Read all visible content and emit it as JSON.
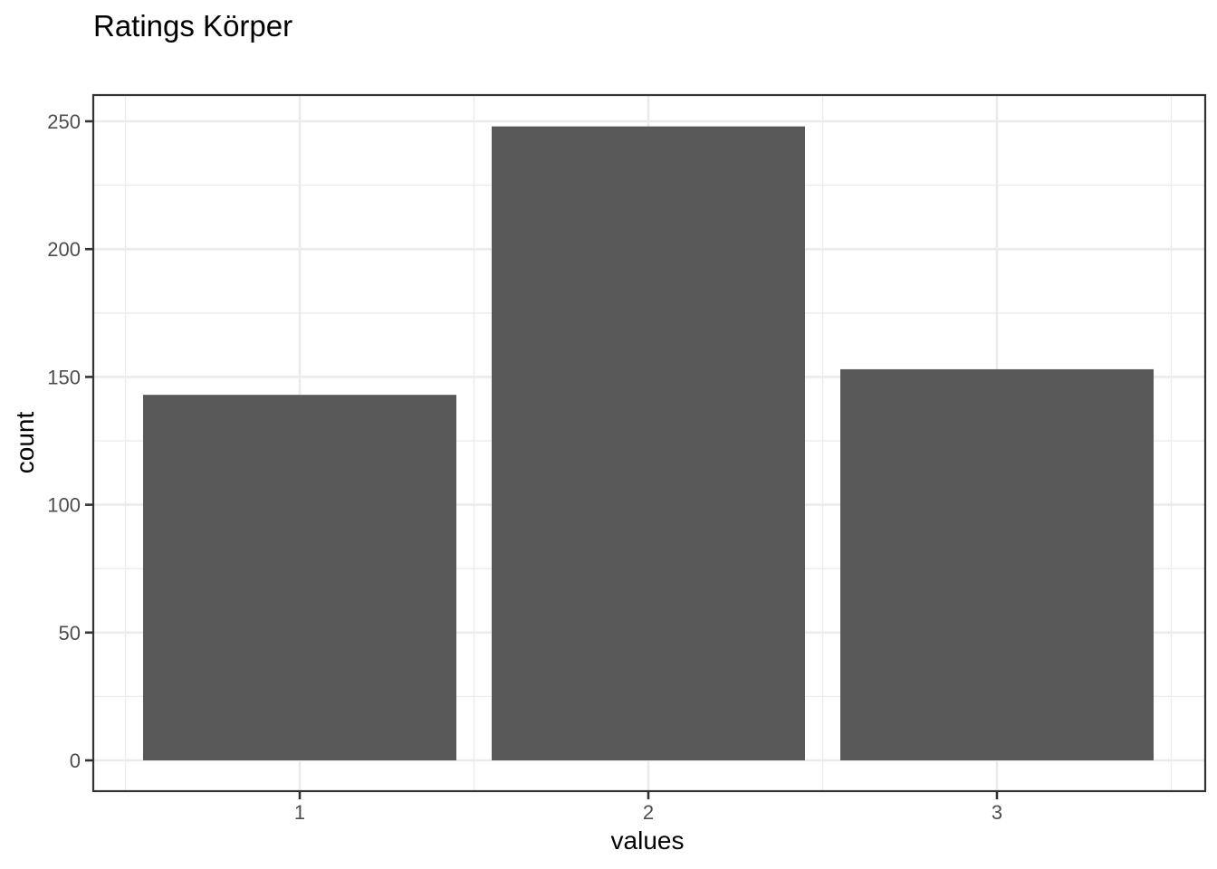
{
  "chart_data": {
    "type": "bar",
    "title": "Ratings Körper",
    "xlabel": "values",
    "ylabel": "count",
    "categories": [
      "1",
      "2",
      "3"
    ],
    "values": [
      143,
      248,
      153
    ],
    "ylim": [
      0,
      260
    ],
    "yticks": [
      0,
      50,
      100,
      150,
      200,
      250
    ],
    "ytick_labels": [
      "0",
      "50",
      "100",
      "150",
      "200",
      "250"
    ],
    "grid": true,
    "bar_color": "#595959",
    "grid_color": "#ebebeb",
    "border_color": "#333333"
  }
}
